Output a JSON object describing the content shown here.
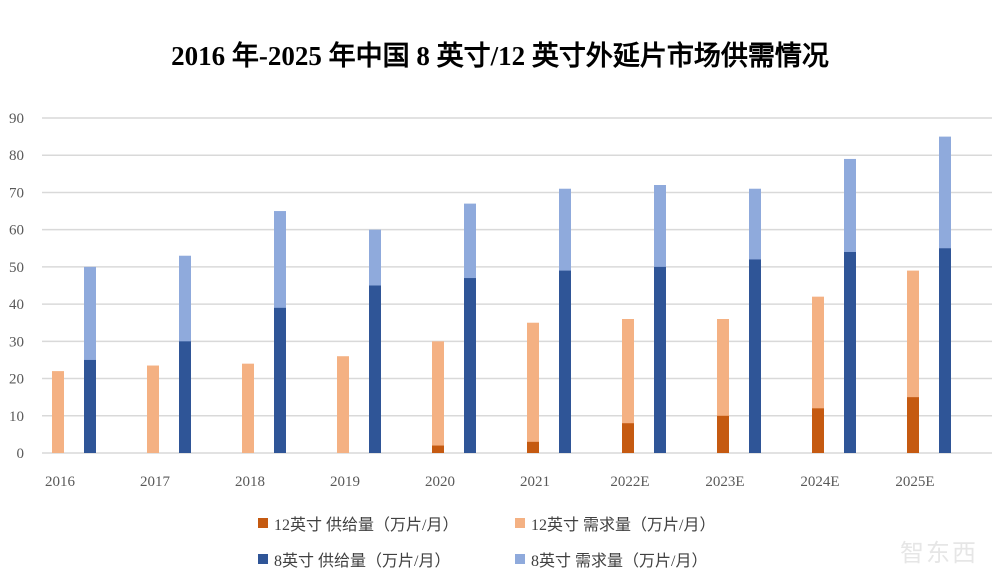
{
  "chart_data": {
    "type": "bar",
    "title": "2016 年-2025 年中国 8 英寸/12 英寸外延片市场供需情况",
    "categories": [
      "2016",
      "2017",
      "2018",
      "2019",
      "2020",
      "2021",
      "2022E",
      "2023E",
      "2024E",
      "2025E"
    ],
    "series": [
      {
        "name": "12英寸 供给量（万片/月）",
        "color": "#C55A11",
        "values": [
          0,
          0,
          0,
          0,
          2,
          3,
          8,
          10,
          12,
          15
        ]
      },
      {
        "name": "12英寸 需求量（万片/月）",
        "color": "#F4B183",
        "values": [
          22,
          23.5,
          24,
          26,
          30,
          35,
          36,
          36,
          42,
          49
        ]
      },
      {
        "name": "8英寸 供给量（万片/月）",
        "color": "#2F5597",
        "values": [
          25,
          30,
          39,
          45,
          47,
          49,
          50,
          52,
          54,
          55
        ]
      },
      {
        "name": "8英寸 需求量（万片/月）",
        "color": "#8FAADC",
        "values": [
          50,
          53,
          65,
          60,
          67,
          71,
          72,
          71,
          79,
          85
        ]
      }
    ],
    "yticks": [
      "0",
      "10",
      "20",
      "30",
      "40",
      "50",
      "60",
      "70",
      "80",
      "90"
    ],
    "ylim": [
      0,
      90
    ],
    "grid": true,
    "legend_placement": "bottom",
    "note": "supply bars overlay demand bars for each wafer size"
  },
  "watermark": "智东西"
}
